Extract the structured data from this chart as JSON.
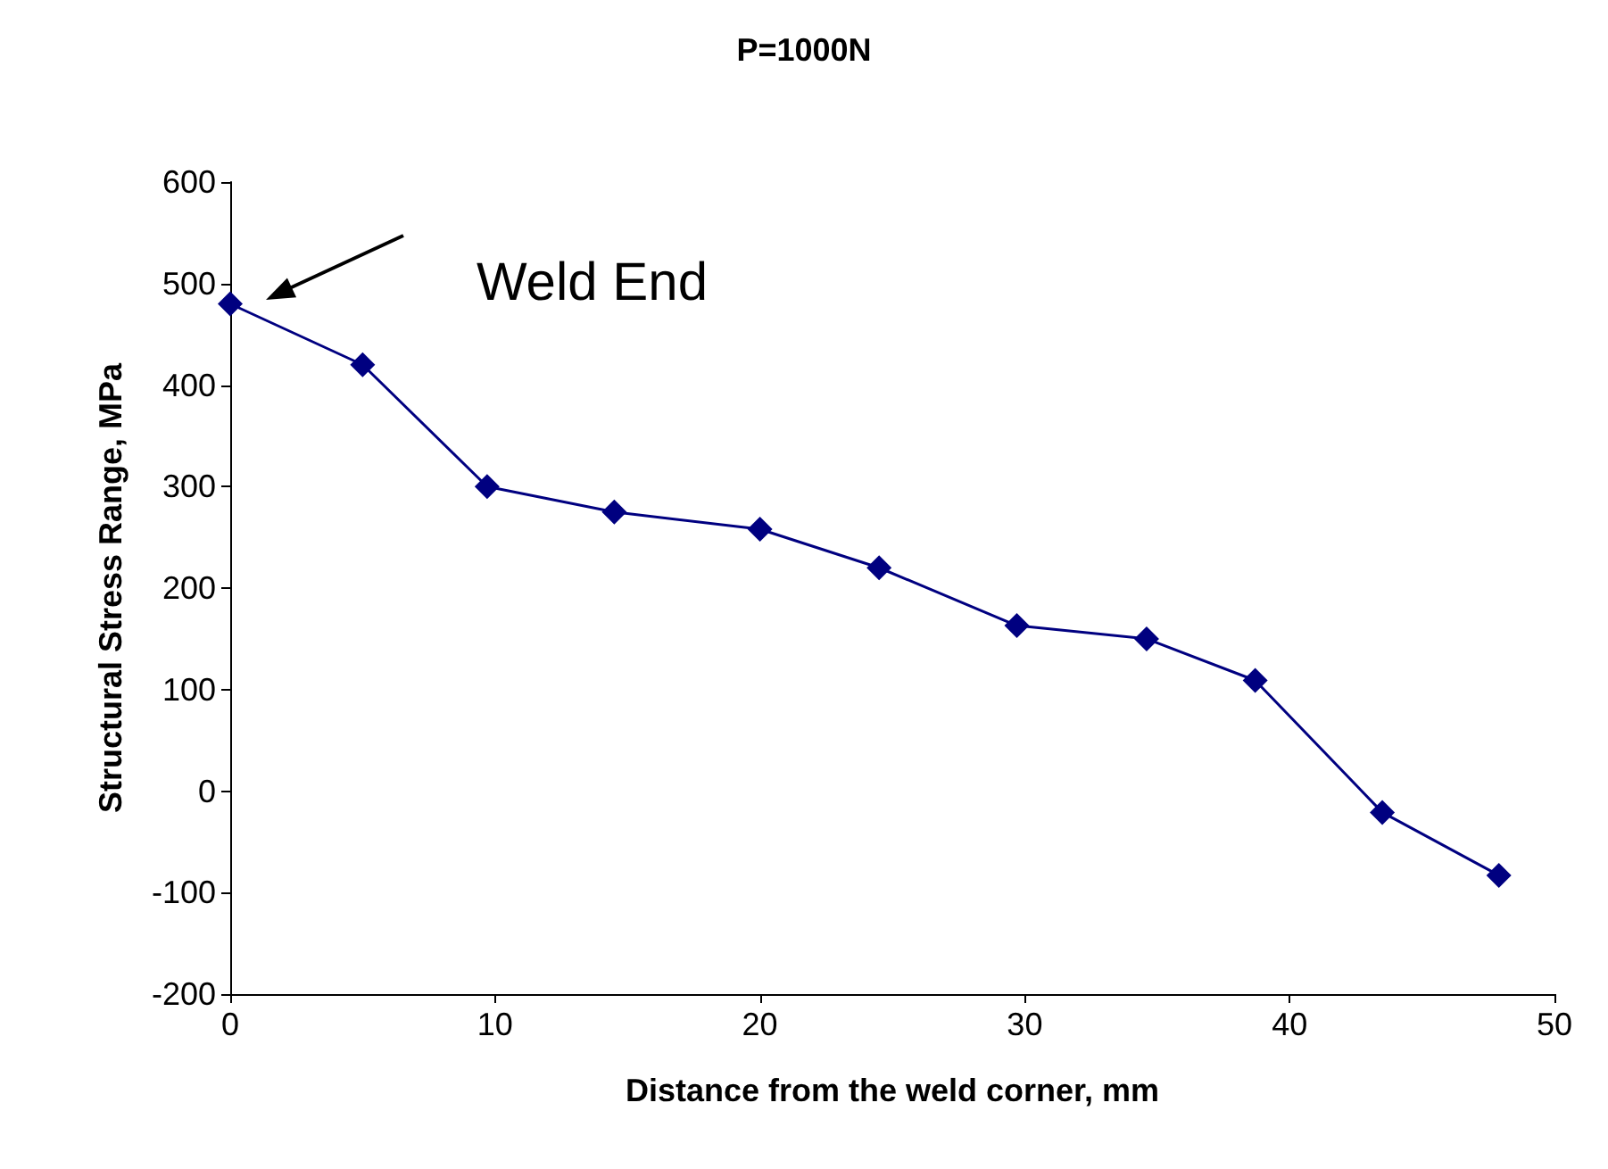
{
  "chart_data": {
    "type": "line",
    "title": "P=1000N",
    "xlabel": "Distance from the weld corner, mm",
    "ylabel": "Structural Stress Range, MPa",
    "x": [
      0,
      5,
      9.7,
      14.5,
      20,
      24.5,
      29.7,
      34.6,
      38.7,
      43.5,
      47.9
    ],
    "series": [
      {
        "color": "#000080",
        "values": [
          480,
          420,
          300,
          275,
          258,
          220,
          163,
          150,
          109,
          -21,
          -83
        ]
      }
    ],
    "xlim": [
      0,
      50
    ],
    "xticks": [
      0,
      10,
      20,
      30,
      40,
      50
    ],
    "ylim": [
      -200,
      600
    ],
    "yticks": [
      -200,
      -100,
      0,
      100,
      200,
      300,
      400,
      500,
      600
    ],
    "annotations": [
      "Weld End"
    ],
    "grid": false,
    "marker": "diamond",
    "line_style": "solid"
  }
}
